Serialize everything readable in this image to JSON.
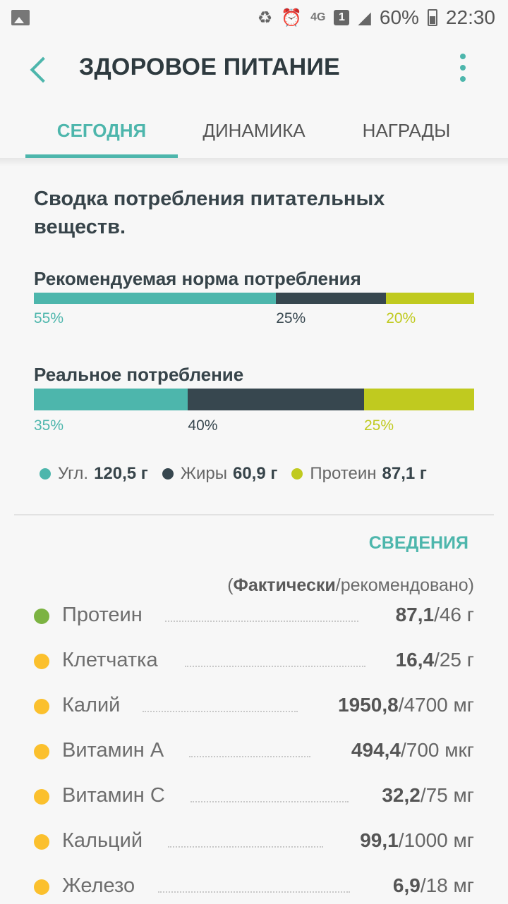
{
  "status_bar": {
    "network": "4G",
    "sim_badge": "1",
    "battery_percent": "60%",
    "time": "22:30",
    "icons": [
      "image-icon",
      "recycle-icon",
      "alarm-icon",
      "wifi-icon",
      "sim-icon",
      "signal-icon",
      "battery-icon"
    ]
  },
  "app_bar": {
    "title": "ЗДОРОВОЕ ПИТАНИЕ",
    "accent_color": "#4db6ac"
  },
  "tabs": [
    {
      "label": "СЕГОДНЯ",
      "active": true
    },
    {
      "label": "ДИНАМИКА",
      "active": false
    },
    {
      "label": "НАГРАДЫ",
      "active": false
    }
  ],
  "summary": {
    "title": "Сводка потребления питательных веществ.",
    "colors": {
      "carbs": "#4db6ac",
      "fat": "#37474f",
      "protein": "#c0ca1f"
    },
    "recommended": {
      "label": "Рекомендуемая норма потребления",
      "carbs_pct": 55,
      "fat_pct": 25,
      "protein_pct": 20,
      "carbs_text": "55%",
      "fat_text": "25%",
      "protein_text": "20%"
    },
    "actual": {
      "label": "Реальное потребление",
      "carbs_pct": 35,
      "fat_pct": 40,
      "protein_pct": 25,
      "carbs_text": "35%",
      "fat_text": "40%",
      "protein_text": "25%"
    },
    "legend": {
      "carbs_label": "Угл.",
      "carbs_value": "120,5 г",
      "fat_label": "Жиры",
      "fat_value": "60,9 г",
      "protein_label": "Протеин",
      "protein_value": "87,1 г"
    }
  },
  "details": {
    "link_label": "СВЕДЕНИЯ",
    "header_actual": "Фактически",
    "header_rest": "/рекомендовано)",
    "header_open": "(",
    "rows": [
      {
        "name": "Протеин",
        "actual": "87,1",
        "rest": "/46 г",
        "status_color": "#7cb342"
      },
      {
        "name": "Клетчатка",
        "actual": "16,4",
        "rest": "/25 г",
        "status_color": "#fbc02d"
      },
      {
        "name": "Калий",
        "actual": "1950,8",
        "rest": "/4700 мг",
        "status_color": "#fbc02d"
      },
      {
        "name": "Витамин А",
        "actual": "494,4",
        "rest": "/700 мкг",
        "status_color": "#fbc02d"
      },
      {
        "name": "Витамин С",
        "actual": "32,2",
        "rest": "/75 мг",
        "status_color": "#fbc02d"
      },
      {
        "name": "Кальций",
        "actual": "99,1",
        "rest": "/1000 мг",
        "status_color": "#fbc02d"
      },
      {
        "name": "Железо",
        "actual": "6,9",
        "rest": "/18 мг",
        "status_color": "#fbc02d"
      }
    ]
  }
}
